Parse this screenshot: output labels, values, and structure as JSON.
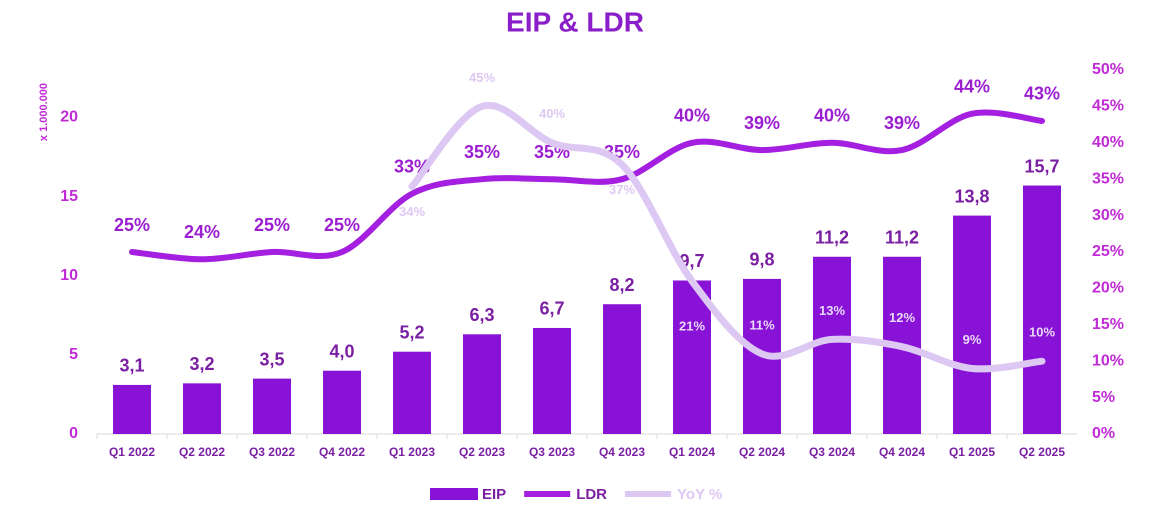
{
  "chart_data": {
    "type": "bar-line",
    "title": "EIP & LDR",
    "y_axis_label": "x 1.000.000",
    "categories": [
      "Q1 2022",
      "Q2 2022",
      "Q3 2022",
      "Q4 2022",
      "Q1 2023",
      "Q2 2023",
      "Q3 2023",
      "Q4 2023",
      "Q1 2024",
      "Q2 2024",
      "Q3 2024",
      "Q4 2024",
      "Q1 2025",
      "Q2 2025"
    ],
    "series": [
      {
        "name": "EIP",
        "type": "bar",
        "color": "#8812d6",
        "values": [
          3.1,
          3.2,
          3.5,
          4.0,
          5.2,
          6.3,
          6.7,
          8.2,
          9.7,
          9.8,
          11.2,
          11.2,
          13.8,
          15.7
        ],
        "value_labels": [
          "3,1",
          "3,2",
          "3,5",
          "4,0",
          "5,2",
          "6,3",
          "6,7",
          "8,2",
          "9,7",
          "9,8",
          "11,2",
          "11,2",
          "13,8",
          "15,7"
        ]
      },
      {
        "name": "LDR",
        "type": "line",
        "axis": "y2",
        "color": "#a41fe0",
        "values": [
          25,
          24,
          25,
          25,
          33,
          35,
          35,
          35,
          40,
          39,
          40,
          39,
          44,
          43
        ],
        "value_labels": [
          "25%",
          "24%",
          "25%",
          "25%",
          "33%",
          "35%",
          "35%",
          "35%",
          "40%",
          "39%",
          "40%",
          "39%",
          "44%",
          "43%"
        ]
      },
      {
        "name": "YoY %",
        "type": "line",
        "axis": "y2",
        "color": "#dcc8f2",
        "values": [
          null,
          null,
          null,
          null,
          34,
          45,
          40,
          37,
          21,
          11,
          13,
          12,
          9,
          10
        ],
        "value_labels": [
          null,
          null,
          null,
          null,
          "34%",
          "45%",
          "40%",
          "37%",
          "21%",
          "11%",
          "13%",
          "12%",
          "9%",
          "10%"
        ]
      }
    ],
    "ylim": [
      0,
      23
    ],
    "yticks": [
      0,
      5,
      10,
      15,
      20
    ],
    "y2lim": [
      0,
      50
    ],
    "y2ticks": [
      {
        "value": 0,
        "label": "0%"
      },
      {
        "value": 5,
        "label": "5%"
      },
      {
        "value": 10,
        "label": "10%"
      },
      {
        "value": 15,
        "label": "15%"
      },
      {
        "value": 20,
        "label": "20%"
      },
      {
        "value": 25,
        "label": "25%"
      },
      {
        "value": 30,
        "label": "30%"
      },
      {
        "value": 35,
        "label": "35%"
      },
      {
        "value": 40,
        "label": "40%"
      },
      {
        "value": 45,
        "label": "45%"
      },
      {
        "value": 50,
        "label": "50%"
      }
    ],
    "legend": "bottom",
    "grid": false
  }
}
